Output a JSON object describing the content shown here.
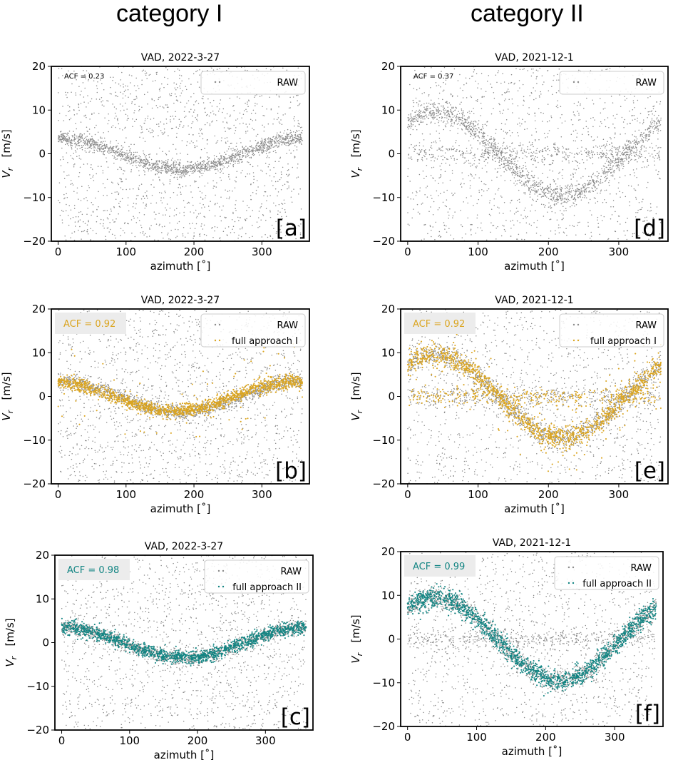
{
  "figure": {
    "column_titles": [
      "category I",
      "category II"
    ]
  },
  "colors": {
    "raw": "#8a8a8a",
    "approach_I": "#dba520",
    "approach_II": "#138583",
    "acf_box": "#ececec"
  },
  "chart_data": [
    {
      "type": "scatter",
      "panel": "[a]",
      "title": "VAD, 2022-3-27",
      "xlabel": "azimuth  [˚]",
      "ylabel": "Vr  [m/s]",
      "xlim": [
        -10,
        370
      ],
      "ylim": [
        -20,
        20
      ],
      "xticks": [
        0,
        100,
        200,
        300
      ],
      "yticks": [
        -20,
        -10,
        0,
        10,
        20
      ],
      "acf": "ACF = 0.23",
      "acf_boxed": false,
      "legend": [
        "RAW"
      ],
      "legend_position": "top-right",
      "series": [
        {
          "name": "RAW",
          "role": "raw",
          "model": {
            "amplitude": 3.5,
            "phase_deg": 0,
            "noise_fraction": 0.5,
            "n_points": 3000,
            "spread": 0.8
          }
        }
      ]
    },
    {
      "type": "scatter",
      "panel": "[b]",
      "title": "VAD, 2022-3-27",
      "xlabel": "azimuth  [˚]",
      "ylabel": "Vr  [m/s]",
      "xlim": [
        -10,
        370
      ],
      "ylim": [
        -20,
        20
      ],
      "xticks": [
        0,
        100,
        200,
        300
      ],
      "yticks": [
        -20,
        -10,
        0,
        10,
        20
      ],
      "acf": "ACF = 0.92",
      "acf_boxed": true,
      "legend": [
        "RAW",
        "full approach I"
      ],
      "legend_position": "top-right",
      "series": [
        {
          "name": "RAW",
          "role": "raw",
          "model": {
            "amplitude": 3.5,
            "phase_deg": 0,
            "noise_fraction": 0.5,
            "n_points": 3000,
            "spread": 0.8
          }
        },
        {
          "name": "full approach I",
          "role": "approach_I",
          "model": {
            "amplitude": 3.3,
            "phase_deg": -10,
            "n_points": 1400,
            "spread": 0.8,
            "outliers": 70
          }
        }
      ]
    },
    {
      "type": "scatter",
      "panel": "[c]",
      "title": "VAD, 2022-3-27",
      "xlabel": "azimuth  [˚]",
      "ylabel": "Vr  [m/s]",
      "xlim": [
        -10,
        370
      ],
      "ylim": [
        -20,
        20
      ],
      "xticks": [
        0,
        100,
        200,
        300
      ],
      "yticks": [
        -20,
        -10,
        0,
        10,
        20
      ],
      "acf": "ACF = 0.98",
      "acf_boxed": true,
      "legend": [
        "RAW",
        "full approach II"
      ],
      "legend_position": "top-right",
      "series": [
        {
          "name": "RAW",
          "role": "raw",
          "model": {
            "amplitude": 3.5,
            "phase_deg": 0,
            "noise_fraction": 0.5,
            "n_points": 3000,
            "spread": 0.8
          }
        },
        {
          "name": "full approach II",
          "role": "approach_II",
          "model": {
            "amplitude": 3.5,
            "phase_deg": 0,
            "n_points": 1400,
            "spread": 0.8
          }
        }
      ]
    },
    {
      "type": "scatter",
      "panel": "[d]",
      "title": "VAD, 2021-12-1",
      "xlabel": "azimuth  [˚]",
      "ylabel": "Vr  [m/s]",
      "xlim": [
        -10,
        370
      ],
      "ylim": [
        -20,
        20
      ],
      "xticks": [
        0,
        100,
        200,
        300
      ],
      "yticks": [
        -20,
        -10,
        0,
        10,
        20
      ],
      "acf": "ACF = 0.37",
      "acf_boxed": false,
      "legend": [
        "RAW"
      ],
      "legend_position": "top-right",
      "series": [
        {
          "name": "RAW",
          "role": "raw",
          "model": {
            "amplitude": 9.5,
            "phase_deg": 40,
            "noise_fraction": 0.4,
            "zero_band_fraction": 0.15,
            "n_points": 3000,
            "spread": 1.2
          }
        }
      ]
    },
    {
      "type": "scatter",
      "panel": "[e]",
      "title": "VAD, 2021-12-1",
      "xlabel": "azimuth  [˚]",
      "ylabel": "Vr  [m/s]",
      "xlim": [
        -10,
        370
      ],
      "ylim": [
        -20,
        20
      ],
      "xticks": [
        0,
        100,
        200,
        300
      ],
      "yticks": [
        -20,
        -10,
        0,
        10,
        20
      ],
      "acf": "ACF = 0.92",
      "acf_boxed": true,
      "legend": [
        "RAW",
        "full approach I"
      ],
      "legend_position": "top-right",
      "series": [
        {
          "name": "RAW",
          "role": "raw",
          "model": {
            "amplitude": 9.5,
            "phase_deg": 40,
            "noise_fraction": 0.4,
            "zero_band_fraction": 0.15,
            "n_points": 3000,
            "spread": 1.2
          }
        },
        {
          "name": "full approach I",
          "role": "approach_I",
          "model": {
            "amplitude": 9.5,
            "phase_deg": 40,
            "n_points": 1500,
            "spread": 1.3,
            "zero_band_fraction": 0.2,
            "outliers": 80
          }
        }
      ]
    },
    {
      "type": "scatter",
      "panel": "[f]",
      "title": "VAD, 2021-12-1",
      "xlabel": "azimuth  [˚]",
      "ylabel": "Vr  [m/s]",
      "xlim": [
        -10,
        370
      ],
      "ylim": [
        -20,
        20
      ],
      "xticks": [
        0,
        100,
        200,
        300
      ],
      "yticks": [
        -20,
        -10,
        0,
        10,
        20
      ],
      "acf": "ACF = 0.99",
      "acf_boxed": true,
      "legend": [
        "RAW",
        "full approach II"
      ],
      "legend_position": "top-right",
      "series": [
        {
          "name": "RAW",
          "role": "raw",
          "model": {
            "amplitude": 9.5,
            "phase_deg": 40,
            "noise_fraction": 0.4,
            "zero_band_fraction": 0.15,
            "n_points": 3000,
            "spread": 1.2
          }
        },
        {
          "name": "full approach II",
          "role": "approach_II",
          "model": {
            "amplitude": 9.5,
            "phase_deg": 40,
            "n_points": 1500,
            "spread": 1.2
          }
        }
      ]
    }
  ]
}
